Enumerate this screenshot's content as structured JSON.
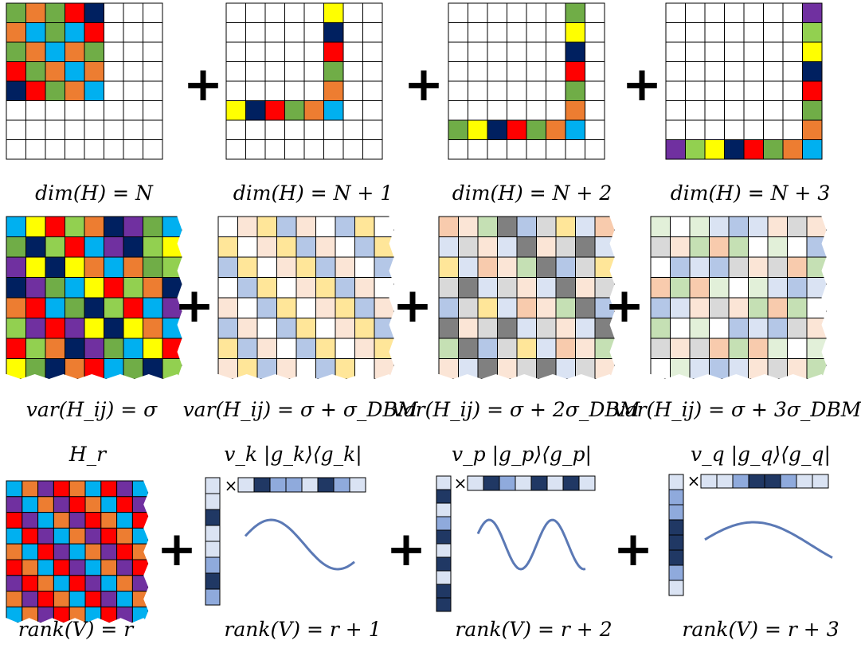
{
  "colors": {
    "lightblue": "#00b0f0",
    "navy": "#002060",
    "red": "#ff0000",
    "green": "#70ad47",
    "orange": "#ed7d31",
    "yellow": "#ffff00",
    "purple": "#7030a0",
    "lime": "#92d050",
    "blue_light": "#dae3f3",
    "blue_mid": "#8faadc",
    "blue_dark": "#203864"
  },
  "row1": {
    "labels": [
      "dim(H) = N",
      "dim(H) = N + 1",
      "dim(H) = N + 2",
      "dim(H) = N + 3"
    ]
  },
  "row2": {
    "labels": [
      "var(H_ij) = σ",
      "var(H_ij) = σ + σ_DBM",
      "var(H_ij) = σ + 2σ_DBM",
      "var(H_ij) = σ + 3σ_DBM"
    ]
  },
  "row3": {
    "top_labels": [
      "H_r",
      "v_k |g_k⟩⟨g_k|",
      "v_p |g_p⟩⟨g_p|",
      "v_q |g_q⟩⟨g_q|"
    ],
    "labels": [
      "rank(V) = r",
      "rank(V) = r + 1",
      "rank(V) = r + 2",
      "rank(V) = r + 3"
    ],
    "times_symbol": "×"
  },
  "plus_symbol": "+"
}
